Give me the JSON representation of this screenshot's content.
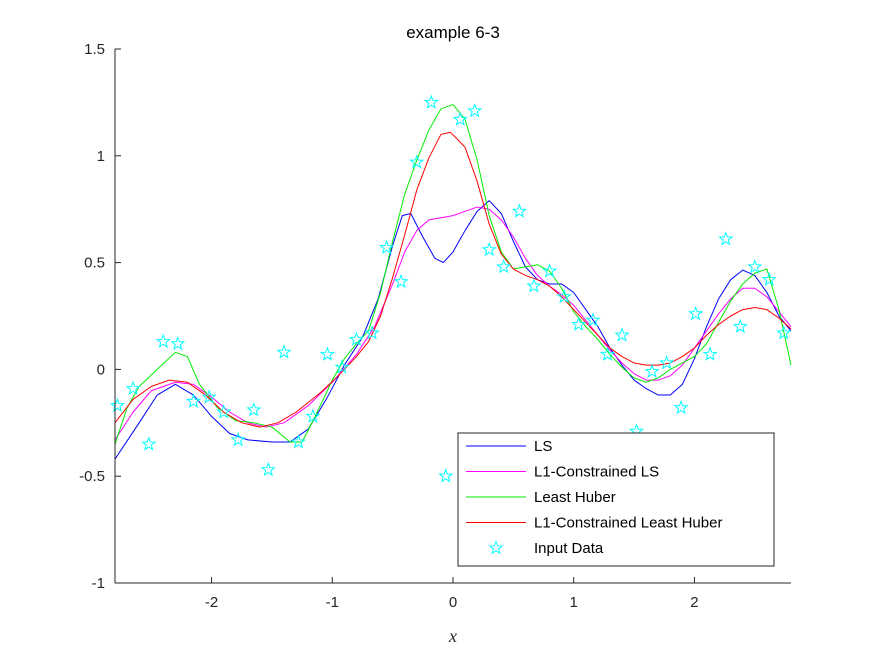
{
  "chart_data": {
    "type": "line",
    "title": "example 6-3",
    "xlabel": "x",
    "ylabel": "",
    "xlim": [
      -2.8,
      2.8
    ],
    "ylim": [
      -1,
      1.5
    ],
    "xticks": [
      -2,
      -1,
      0,
      1,
      2
    ],
    "xtick_labels": [
      "-2",
      "-1",
      "0",
      "1",
      "2"
    ],
    "yticks": [
      -1,
      -0.5,
      0,
      0.5,
      1,
      1.5
    ],
    "ytick_labels": [
      "-1",
      "-0.5",
      "0",
      "0.5",
      "1",
      "1.5"
    ],
    "grid": false,
    "legend_position": "bottom-right",
    "series": [
      {
        "name": "LS",
        "color": "#0000ff",
        "kind": "line",
        "points": [
          [
            -2.8,
            -0.42
          ],
          [
            -2.6,
            -0.25
          ],
          [
            -2.45,
            -0.12
          ],
          [
            -2.3,
            -0.07
          ],
          [
            -2.15,
            -0.12
          ],
          [
            -2.0,
            -0.22
          ],
          [
            -1.85,
            -0.3
          ],
          [
            -1.7,
            -0.33
          ],
          [
            -1.5,
            -0.34
          ],
          [
            -1.35,
            -0.34
          ],
          [
            -1.2,
            -0.28
          ],
          [
            -1.05,
            -0.14
          ],
          [
            -0.9,
            0.02
          ],
          [
            -0.75,
            0.15
          ],
          [
            -0.62,
            0.33
          ],
          [
            -0.5,
            0.58
          ],
          [
            -0.42,
            0.72
          ],
          [
            -0.35,
            0.73
          ],
          [
            -0.25,
            0.62
          ],
          [
            -0.15,
            0.52
          ],
          [
            -0.08,
            0.5
          ],
          [
            0.0,
            0.55
          ],
          [
            0.1,
            0.65
          ],
          [
            0.2,
            0.74
          ],
          [
            0.3,
            0.79
          ],
          [
            0.4,
            0.73
          ],
          [
            0.5,
            0.6
          ],
          [
            0.6,
            0.48
          ],
          [
            0.7,
            0.42
          ],
          [
            0.8,
            0.4
          ],
          [
            0.9,
            0.4
          ],
          [
            1.0,
            0.36
          ],
          [
            1.1,
            0.28
          ],
          [
            1.2,
            0.2
          ],
          [
            1.3,
            0.1
          ],
          [
            1.4,
            0.02
          ],
          [
            1.5,
            -0.05
          ],
          [
            1.6,
            -0.09
          ],
          [
            1.7,
            -0.12
          ],
          [
            1.8,
            -0.12
          ],
          [
            1.9,
            -0.07
          ],
          [
            2.0,
            0.05
          ],
          [
            2.1,
            0.2
          ],
          [
            2.2,
            0.33
          ],
          [
            2.3,
            0.42
          ],
          [
            2.4,
            0.465
          ],
          [
            2.5,
            0.44
          ],
          [
            2.6,
            0.36
          ],
          [
            2.7,
            0.25
          ],
          [
            2.8,
            0.18
          ]
        ]
      },
      {
        "name": "L1-Constrained LS",
        "color": "#ff00ff",
        "kind": "line",
        "points": [
          [
            -2.8,
            -0.33
          ],
          [
            -2.65,
            -0.2
          ],
          [
            -2.5,
            -0.1
          ],
          [
            -2.3,
            -0.06
          ],
          [
            -2.15,
            -0.07
          ],
          [
            -2.0,
            -0.13
          ],
          [
            -1.85,
            -0.2
          ],
          [
            -1.7,
            -0.25
          ],
          [
            -1.55,
            -0.27
          ],
          [
            -1.4,
            -0.25
          ],
          [
            -1.2,
            -0.17
          ],
          [
            -1.0,
            -0.06
          ],
          [
            -0.8,
            0.07
          ],
          [
            -0.65,
            0.2
          ],
          [
            -0.5,
            0.4
          ],
          [
            -0.4,
            0.55
          ],
          [
            -0.3,
            0.65
          ],
          [
            -0.2,
            0.7
          ],
          [
            -0.1,
            0.71
          ],
          [
            0.0,
            0.72
          ],
          [
            0.1,
            0.74
          ],
          [
            0.2,
            0.76
          ],
          [
            0.3,
            0.75
          ],
          [
            0.4,
            0.7
          ],
          [
            0.5,
            0.62
          ],
          [
            0.6,
            0.52
          ],
          [
            0.7,
            0.44
          ],
          [
            0.8,
            0.39
          ],
          [
            0.9,
            0.35
          ],
          [
            1.0,
            0.3
          ],
          [
            1.1,
            0.23
          ],
          [
            1.2,
            0.16
          ],
          [
            1.3,
            0.09
          ],
          [
            1.4,
            0.03
          ],
          [
            1.5,
            -0.02
          ],
          [
            1.6,
            -0.05
          ],
          [
            1.7,
            -0.05
          ],
          [
            1.8,
            -0.03
          ],
          [
            1.9,
            0.02
          ],
          [
            2.0,
            0.1
          ],
          [
            2.1,
            0.18
          ],
          [
            2.2,
            0.26
          ],
          [
            2.3,
            0.33
          ],
          [
            2.4,
            0.38
          ],
          [
            2.5,
            0.38
          ],
          [
            2.6,
            0.34
          ],
          [
            2.7,
            0.27
          ],
          [
            2.8,
            0.2
          ]
        ]
      },
      {
        "name": "Least Huber",
        "color": "#00ee00",
        "kind": "line",
        "points": [
          [
            -2.8,
            -0.35
          ],
          [
            -2.7,
            -0.18
          ],
          [
            -2.6,
            -0.08
          ],
          [
            -2.45,
            0.0
          ],
          [
            -2.3,
            0.08
          ],
          [
            -2.2,
            0.06
          ],
          [
            -2.1,
            -0.07
          ],
          [
            -1.95,
            -0.18
          ],
          [
            -1.8,
            -0.24
          ],
          [
            -1.65,
            -0.25
          ],
          [
            -1.5,
            -0.27
          ],
          [
            -1.35,
            -0.34
          ],
          [
            -1.25,
            -0.34
          ],
          [
            -1.15,
            -0.23
          ],
          [
            -1.0,
            -0.05
          ],
          [
            -0.9,
            0.05
          ],
          [
            -0.8,
            0.12
          ],
          [
            -0.7,
            0.18
          ],
          [
            -0.6,
            0.36
          ],
          [
            -0.5,
            0.6
          ],
          [
            -0.4,
            0.82
          ],
          [
            -0.3,
            0.98
          ],
          [
            -0.2,
            1.12
          ],
          [
            -0.1,
            1.22
          ],
          [
            0.0,
            1.24
          ],
          [
            0.1,
            1.17
          ],
          [
            0.2,
            0.98
          ],
          [
            0.3,
            0.72
          ],
          [
            0.4,
            0.55
          ],
          [
            0.5,
            0.47
          ],
          [
            0.6,
            0.48
          ],
          [
            0.7,
            0.49
          ],
          [
            0.8,
            0.46
          ],
          [
            0.9,
            0.38
          ],
          [
            1.0,
            0.27
          ],
          [
            1.1,
            0.2
          ],
          [
            1.2,
            0.14
          ],
          [
            1.3,
            0.07
          ],
          [
            1.4,
            0.01
          ],
          [
            1.5,
            -0.04
          ],
          [
            1.6,
            -0.06
          ],
          [
            1.7,
            -0.04
          ],
          [
            1.8,
            0.0
          ],
          [
            1.9,
            0.03
          ],
          [
            2.0,
            0.06
          ],
          [
            2.1,
            0.12
          ],
          [
            2.2,
            0.22
          ],
          [
            2.3,
            0.32
          ],
          [
            2.4,
            0.4
          ],
          [
            2.5,
            0.45
          ],
          [
            2.6,
            0.47
          ],
          [
            2.7,
            0.28
          ],
          [
            2.8,
            0.02
          ]
        ]
      },
      {
        "name": "L1-Constrained Least Huber",
        "color": "#ff0000",
        "kind": "line",
        "points": [
          [
            -2.8,
            -0.25
          ],
          [
            -2.65,
            -0.14
          ],
          [
            -2.5,
            -0.08
          ],
          [
            -2.35,
            -0.05
          ],
          [
            -2.2,
            -0.06
          ],
          [
            -2.05,
            -0.12
          ],
          [
            -1.9,
            -0.2
          ],
          [
            -1.75,
            -0.25
          ],
          [
            -1.6,
            -0.27
          ],
          [
            -1.45,
            -0.25
          ],
          [
            -1.3,
            -0.2
          ],
          [
            -1.1,
            -0.11
          ],
          [
            -0.95,
            -0.03
          ],
          [
            -0.8,
            0.06
          ],
          [
            -0.7,
            0.13
          ],
          [
            -0.6,
            0.25
          ],
          [
            -0.5,
            0.43
          ],
          [
            -0.4,
            0.63
          ],
          [
            -0.3,
            0.84
          ],
          [
            -0.2,
            0.99
          ],
          [
            -0.1,
            1.1
          ],
          [
            -0.02,
            1.11
          ],
          [
            0.1,
            1.04
          ],
          [
            0.2,
            0.88
          ],
          [
            0.3,
            0.68
          ],
          [
            0.4,
            0.54
          ],
          [
            0.5,
            0.47
          ],
          [
            0.6,
            0.44
          ],
          [
            0.7,
            0.42
          ],
          [
            0.8,
            0.39
          ],
          [
            0.9,
            0.34
          ],
          [
            1.0,
            0.28
          ],
          [
            1.1,
            0.22
          ],
          [
            1.2,
            0.16
          ],
          [
            1.3,
            0.1
          ],
          [
            1.4,
            0.06
          ],
          [
            1.5,
            0.03
          ],
          [
            1.6,
            0.02
          ],
          [
            1.7,
            0.02
          ],
          [
            1.8,
            0.03
          ],
          [
            1.9,
            0.06
          ],
          [
            2.0,
            0.1
          ],
          [
            2.1,
            0.16
          ],
          [
            2.2,
            0.21
          ],
          [
            2.3,
            0.25
          ],
          [
            2.4,
            0.28
          ],
          [
            2.5,
            0.29
          ],
          [
            2.6,
            0.28
          ],
          [
            2.7,
            0.24
          ],
          [
            2.8,
            0.19
          ]
        ]
      },
      {
        "name": "Input Data",
        "color": "#00ffff",
        "kind": "marker",
        "points": [
          [
            -2.78,
            -0.17
          ],
          [
            -2.65,
            -0.09
          ],
          [
            -2.52,
            -0.35
          ],
          [
            -2.4,
            0.13
          ],
          [
            -2.28,
            0.12
          ],
          [
            -2.15,
            -0.15
          ],
          [
            -2.02,
            -0.13
          ],
          [
            -1.9,
            -0.2
          ],
          [
            -1.78,
            -0.33
          ],
          [
            -1.65,
            -0.19
          ],
          [
            -1.53,
            -0.47
          ],
          [
            -1.4,
            0.08
          ],
          [
            -1.28,
            -0.34
          ],
          [
            -1.16,
            -0.22
          ],
          [
            -1.04,
            0.07
          ],
          [
            -0.92,
            0.01
          ],
          [
            -0.8,
            0.14
          ],
          [
            -0.67,
            0.17
          ],
          [
            -0.55,
            0.57
          ],
          [
            -0.43,
            0.41
          ],
          [
            -0.3,
            0.97
          ],
          [
            -0.18,
            1.25
          ],
          [
            -0.06,
            -0.5
          ],
          [
            0.06,
            1.17
          ],
          [
            0.18,
            1.21
          ],
          [
            0.3,
            0.56
          ],
          [
            0.42,
            0.48
          ],
          [
            0.55,
            0.74
          ],
          [
            0.67,
            0.39
          ],
          [
            0.8,
            0.46
          ],
          [
            0.92,
            0.34
          ],
          [
            1.04,
            0.21
          ],
          [
            1.16,
            0.23
          ],
          [
            1.28,
            0.07
          ],
          [
            1.4,
            0.16
          ],
          [
            1.52,
            -0.29
          ],
          [
            1.65,
            -0.01
          ],
          [
            1.77,
            0.03
          ],
          [
            1.89,
            -0.18
          ],
          [
            2.01,
            0.26
          ],
          [
            2.13,
            0.07
          ],
          [
            2.26,
            0.61
          ],
          [
            2.38,
            0.2
          ],
          [
            2.5,
            0.48
          ],
          [
            2.62,
            0.42
          ],
          [
            2.74,
            0.17
          ]
        ]
      }
    ]
  }
}
